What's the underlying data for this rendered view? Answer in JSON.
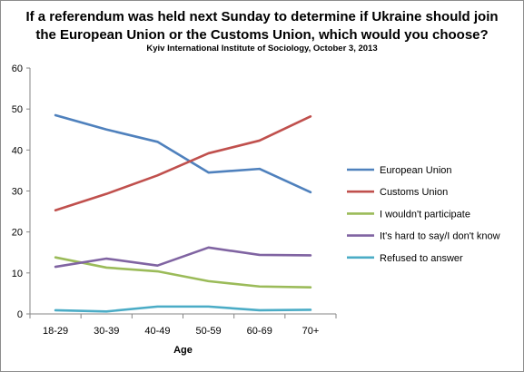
{
  "chart_data": {
    "type": "line",
    "title_line1": "If a referendum was held next Sunday to determine if Ukraine should join",
    "title_line2": "the European Union or the Customs Union, which would you choose?",
    "subtitle": "Kyiv International Institute of Sociology, October 3, 2013",
    "xlabel": "Age",
    "ylabel": "",
    "ylim": [
      0,
      60
    ],
    "yticks": [
      0,
      10,
      20,
      30,
      40,
      50,
      60
    ],
    "categories": [
      "18-29",
      "30-39",
      "40-49",
      "50-59",
      "60-69",
      "70+"
    ],
    "grid": false,
    "legend_position": "right",
    "series": [
      {
        "name": "European Union",
        "color": "#4f81bd",
        "values": [
          48.5,
          45.0,
          42.0,
          34.5,
          35.4,
          29.7
        ]
      },
      {
        "name": "Customs Union",
        "color": "#c0504d",
        "values": [
          25.3,
          29.3,
          33.8,
          39.2,
          42.3,
          48.2
        ]
      },
      {
        "name": "I wouldn't participate",
        "color": "#9bbb59",
        "values": [
          13.8,
          11.3,
          10.4,
          8.0,
          6.7,
          6.5
        ]
      },
      {
        "name": "It's hard to say/I don't know",
        "color": "#8064a2",
        "values": [
          11.5,
          13.5,
          11.8,
          16.2,
          14.4,
          14.3
        ]
      },
      {
        "name": "Refused to answer",
        "color": "#4bacc6",
        "values": [
          0.9,
          0.6,
          1.8,
          1.8,
          0.9,
          1.0
        ]
      }
    ]
  }
}
